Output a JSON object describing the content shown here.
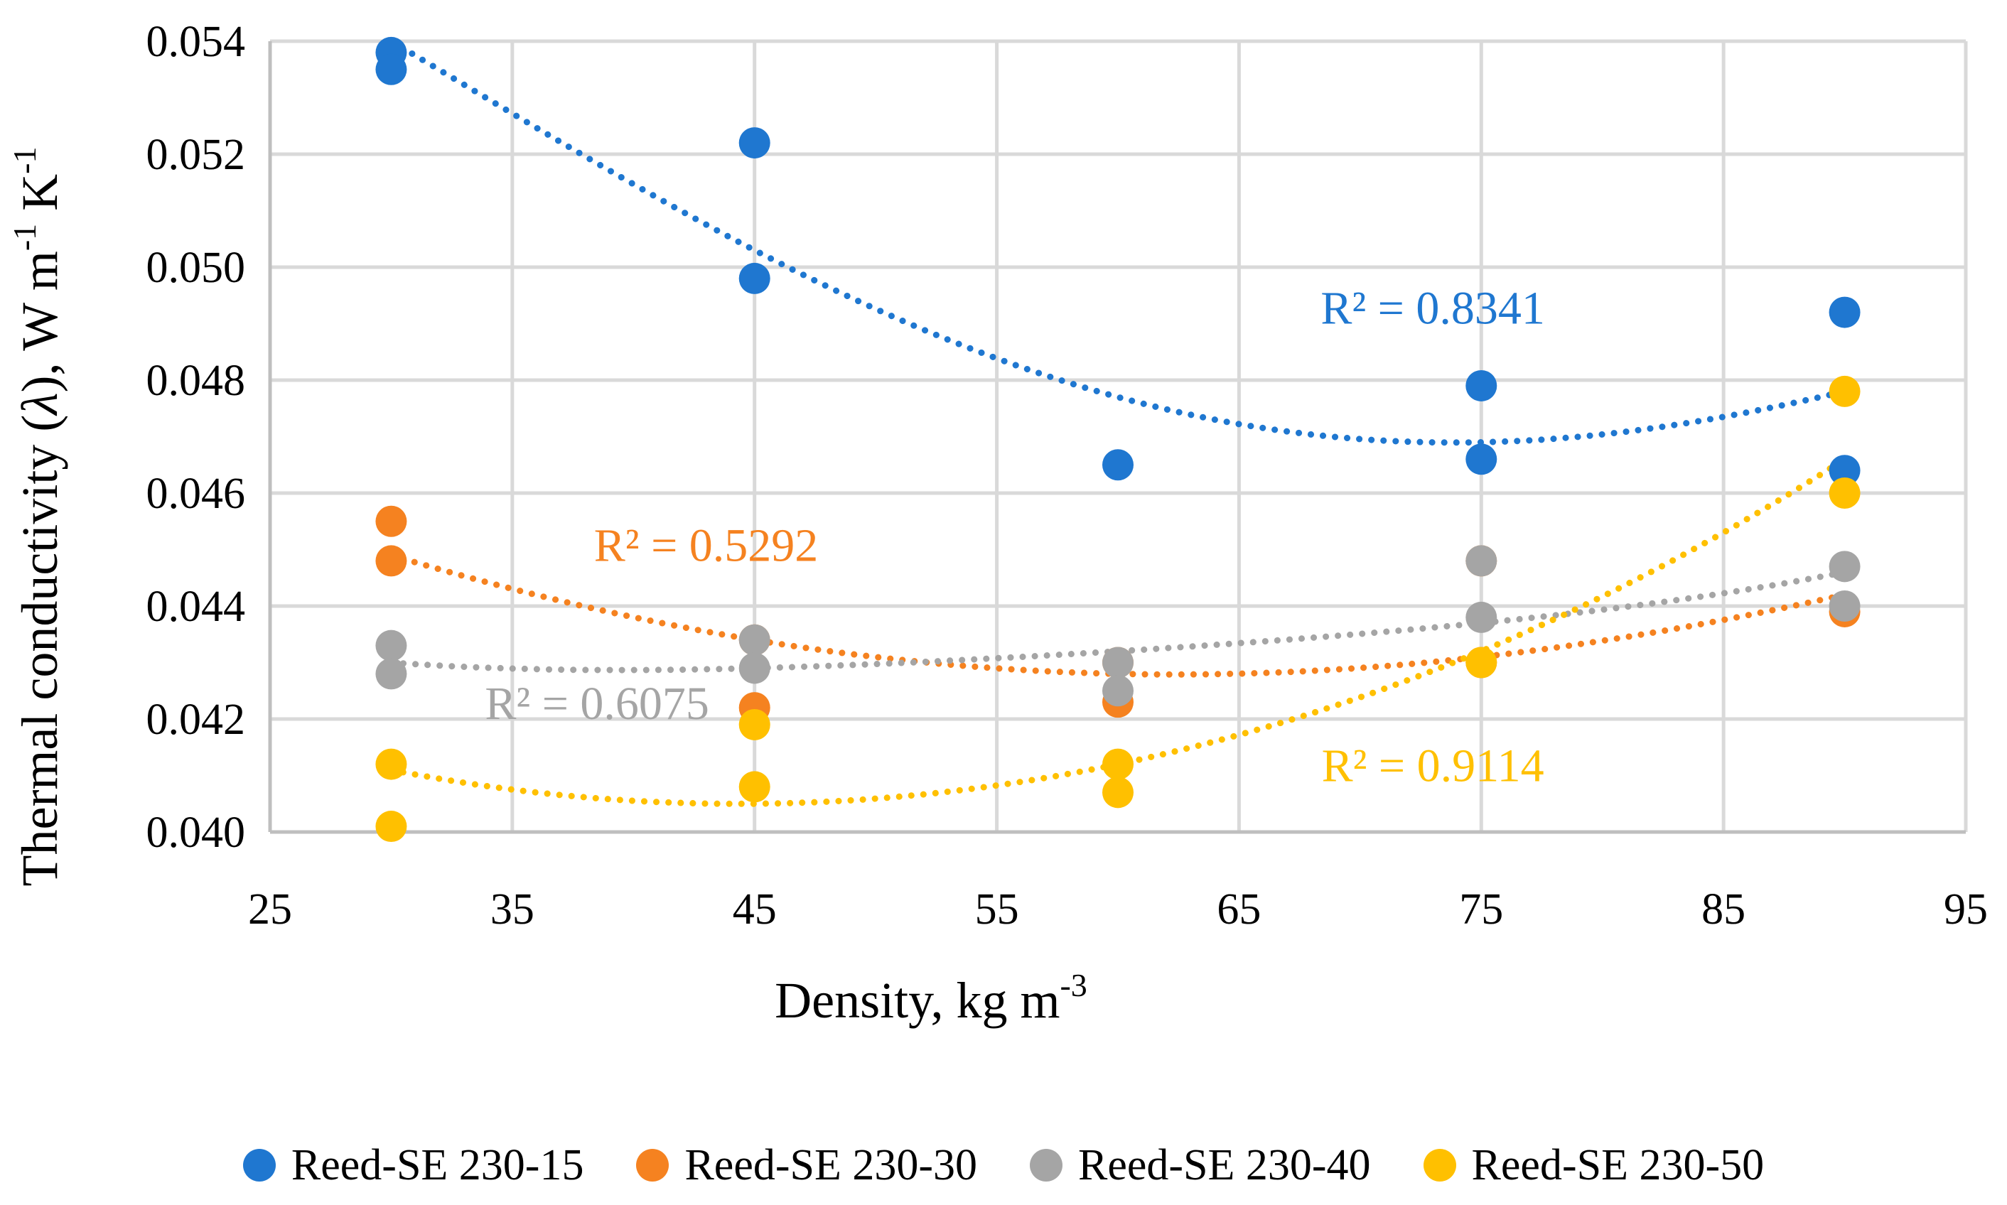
{
  "chart_data": {
    "type": "scatter",
    "title": "",
    "xlabel": "Density, kg m",
    "xlabel_sup": "-3",
    "ylabel_parts": [
      "Thermal conductivity (",
      "λ",
      "), W m",
      "-1",
      " K",
      "-1"
    ],
    "xlim": [
      25,
      95
    ],
    "ylim": [
      0.04,
      0.054
    ],
    "x_ticks": [
      "25",
      "35",
      "45",
      "55",
      "65",
      "75",
      "85",
      "95"
    ],
    "x_tick_values": [
      25,
      35,
      45,
      55,
      65,
      75,
      85,
      95
    ],
    "y_ticks": [
      "0.040",
      "0.042",
      "0.044",
      "0.046",
      "0.048",
      "0.050",
      "0.052",
      "0.054"
    ],
    "y_tick_values": [
      0.04,
      0.042,
      0.044,
      0.046,
      0.048,
      0.05,
      0.052,
      0.054
    ],
    "grid": true,
    "legend_position": "bottom",
    "series": [
      {
        "name": "Reed-SE 230-15",
        "color": "#1f77d0",
        "points": [
          [
            30,
            0.0538
          ],
          [
            30,
            0.0535
          ],
          [
            45,
            0.0522
          ],
          [
            45,
            0.0498
          ],
          [
            60,
            0.0465
          ],
          [
            75,
            0.0479
          ],
          [
            75,
            0.0466
          ],
          [
            90,
            0.0492
          ],
          [
            90,
            0.0464
          ]
        ],
        "trend": {
          "type": "poly2",
          "r2_label": "R² = 0.8341",
          "curve": [
            [
              30,
              0.054
            ],
            [
              45,
              0.0503
            ],
            [
              60,
              0.0477
            ],
            [
              75,
              0.0469
            ],
            [
              90,
              0.0478
            ]
          ],
          "annotation_at": [
            73,
            0.049
          ]
        }
      },
      {
        "name": "Reed-SE 230-30",
        "color": "#f58220",
        "points": [
          [
            30,
            0.0455
          ],
          [
            30,
            0.0448
          ],
          [
            45,
            0.0434
          ],
          [
            45,
            0.0422
          ],
          [
            60,
            0.043
          ],
          [
            60,
            0.0423
          ],
          [
            75,
            0.0448
          ],
          [
            75,
            0.043
          ],
          [
            90,
            0.0439
          ]
        ],
        "trend": {
          "type": "poly2",
          "r2_label": "R² = 0.5292",
          "curve": [
            [
              30,
              0.0449
            ],
            [
              45,
              0.0434
            ],
            [
              60,
              0.0428
            ],
            [
              75,
              0.0431
            ],
            [
              90,
              0.0442
            ]
          ],
          "annotation_at": [
            43,
            0.0448
          ]
        }
      },
      {
        "name": "Reed-SE 230-40",
        "color": "#a5a5a5",
        "points": [
          [
            30,
            0.0433
          ],
          [
            30,
            0.0428
          ],
          [
            45,
            0.0434
          ],
          [
            45,
            0.0429
          ],
          [
            60,
            0.043
          ],
          [
            60,
            0.0425
          ],
          [
            75,
            0.0448
          ],
          [
            75,
            0.0438
          ],
          [
            90,
            0.0447
          ],
          [
            90,
            0.044
          ]
        ],
        "trend": {
          "type": "poly2",
          "r2_label": "R² = 0.6075",
          "curve": [
            [
              30,
              0.043
            ],
            [
              45,
              0.0429
            ],
            [
              60,
              0.0432
            ],
            [
              75,
              0.0437
            ],
            [
              90,
              0.0446
            ]
          ],
          "annotation_at": [
            38.5,
            0.042
          ]
        }
      },
      {
        "name": "Reed-SE 230-50",
        "color": "#ffc000",
        "points": [
          [
            30,
            0.0412
          ],
          [
            30,
            0.0401
          ],
          [
            45,
            0.0419
          ],
          [
            45,
            0.0408
          ],
          [
            60,
            0.0412
          ],
          [
            60,
            0.0407
          ],
          [
            75,
            0.043
          ],
          [
            90,
            0.0478
          ],
          [
            90,
            0.046
          ]
        ],
        "trend": {
          "type": "poly2",
          "r2_label": "R² = 0.9114",
          "curve": [
            [
              30,
              0.0411
            ],
            [
              45,
              0.0405
            ],
            [
              60,
              0.0412
            ],
            [
              75,
              0.0432
            ],
            [
              90,
              0.0466
            ]
          ],
          "annotation_at": [
            73,
            0.0409
          ]
        }
      }
    ]
  }
}
